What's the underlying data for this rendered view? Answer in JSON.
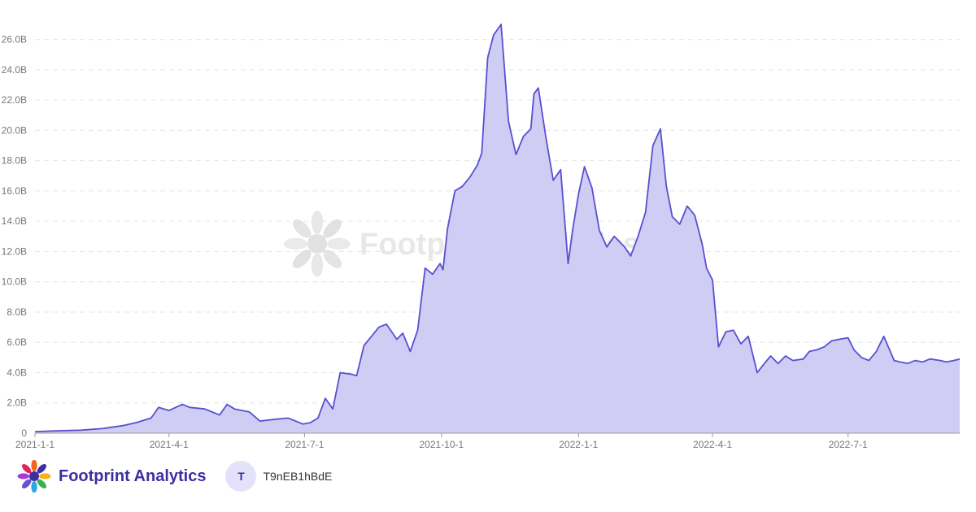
{
  "chart_data": {
    "type": "area",
    "title": "",
    "xlabel": "",
    "ylabel": "",
    "x_tick_labels": [
      "2021-1-1",
      "2021-4-1",
      "2021-7-1",
      "2021-10-1",
      "2022-1-1",
      "2022-4-1",
      "2022-7-1"
    ],
    "y_tick_labels": [
      "0",
      "2.0B",
      "4.0B",
      "6.0B",
      "8.0B",
      "10.0B",
      "12.0B",
      "14.0B",
      "16.0B",
      "18.0B",
      "20.0B",
      "22.0B",
      "24.0B",
      "26.0B"
    ],
    "ylim": [
      0,
      27
    ],
    "xlim": [
      "2021-01-01",
      "2022-09-14"
    ],
    "grid": true,
    "units": "B",
    "series": [
      {
        "values_unit": "billions",
        "x": [
          "2021-01-01",
          "2021-01-15",
          "2021-02-01",
          "2021-02-15",
          "2021-03-01",
          "2021-03-10",
          "2021-03-20",
          "2021-03-25",
          "2021-04-01",
          "2021-04-10",
          "2021-04-15",
          "2021-04-25",
          "2021-05-05",
          "2021-05-10",
          "2021-05-15",
          "2021-05-25",
          "2021-06-01",
          "2021-06-10",
          "2021-06-20",
          "2021-06-30",
          "2021-07-05",
          "2021-07-10",
          "2021-07-15",
          "2021-07-20",
          "2021-07-25",
          "2021-08-01",
          "2021-08-05",
          "2021-08-10",
          "2021-08-15",
          "2021-08-20",
          "2021-08-25",
          "2021-09-01",
          "2021-09-05",
          "2021-09-10",
          "2021-09-15",
          "2021-09-20",
          "2021-09-25",
          "2021-09-30",
          "2021-10-02",
          "2021-10-05",
          "2021-10-10",
          "2021-10-15",
          "2021-10-20",
          "2021-10-25",
          "2021-10-28",
          "2021-11-01",
          "2021-11-05",
          "2021-11-10",
          "2021-11-15",
          "2021-11-20",
          "2021-11-25",
          "2021-11-30",
          "2021-12-02",
          "2021-12-05",
          "2021-12-10",
          "2021-12-15",
          "2021-12-20",
          "2021-12-25",
          "2021-12-28",
          "2022-01-01",
          "2022-01-05",
          "2022-01-10",
          "2022-01-15",
          "2022-01-20",
          "2022-01-25",
          "2022-02-01",
          "2022-02-05",
          "2022-02-10",
          "2022-02-15",
          "2022-02-20",
          "2022-02-25",
          "2022-03-01",
          "2022-03-05",
          "2022-03-10",
          "2022-03-15",
          "2022-03-20",
          "2022-03-25",
          "2022-03-28",
          "2022-04-01",
          "2022-04-05",
          "2022-04-10",
          "2022-04-15",
          "2022-04-20",
          "2022-04-25",
          "2022-05-01",
          "2022-05-05",
          "2022-05-10",
          "2022-05-15",
          "2022-05-20",
          "2022-05-25",
          "2022-06-01",
          "2022-06-05",
          "2022-06-10",
          "2022-06-15",
          "2022-06-20",
          "2022-06-25",
          "2022-07-01",
          "2022-07-05",
          "2022-07-10",
          "2022-07-15",
          "2022-07-20",
          "2022-07-25",
          "2022-08-01",
          "2022-08-05",
          "2022-08-10",
          "2022-08-15",
          "2022-08-20",
          "2022-08-25",
          "2022-09-01",
          "2022-09-05",
          "2022-09-10",
          "2022-09-14"
        ],
        "values": [
          0.1,
          0.15,
          0.2,
          0.3,
          0.5,
          0.7,
          1.0,
          1.7,
          1.5,
          1.9,
          1.7,
          1.6,
          1.2,
          1.9,
          1.6,
          1.4,
          0.8,
          0.9,
          1.0,
          0.6,
          0.7,
          1.0,
          2.3,
          1.6,
          4.0,
          3.9,
          3.8,
          5.8,
          6.4,
          7.0,
          7.2,
          6.2,
          6.6,
          5.4,
          6.8,
          10.9,
          10.5,
          11.2,
          10.8,
          13.5,
          16.0,
          16.3,
          16.9,
          17.7,
          18.5,
          24.8,
          26.3,
          27.0,
          20.6,
          18.4,
          19.6,
          20.1,
          22.4,
          22.8,
          19.6,
          16.7,
          17.4,
          11.2,
          13.4,
          15.8,
          17.6,
          16.2,
          13.4,
          12.3,
          13.0,
          12.3,
          11.7,
          13.0,
          14.6,
          19.0,
          20.1,
          16.3,
          14.3,
          13.8,
          15.0,
          14.4,
          12.5,
          10.9,
          10.1,
          5.7,
          6.7,
          6.8,
          5.9,
          6.4,
          4.0,
          4.5,
          5.1,
          4.6,
          5.1,
          4.8,
          4.9,
          5.4,
          5.5,
          5.7,
          6.1,
          6.2,
          6.3,
          5.5,
          5.0,
          4.8,
          5.4,
          6.4,
          4.8,
          4.7,
          4.6,
          4.8,
          4.7,
          4.9,
          4.8,
          4.7,
          4.8,
          4.9
        ]
      }
    ],
    "colors": {
      "line": "#5a4fd1",
      "fill": "#cfcdf4",
      "grid": "#e6e6e6",
      "axis": "#999999"
    }
  },
  "watermark": {
    "text": "Footprint Analytics",
    "icon": "footprint-logo-icon"
  },
  "footer": {
    "brand_name": "Footprint Analytics",
    "brand_icon": "footprint-logo-icon",
    "avatar_initial": "T",
    "username": "T9nEB1hBdE"
  }
}
